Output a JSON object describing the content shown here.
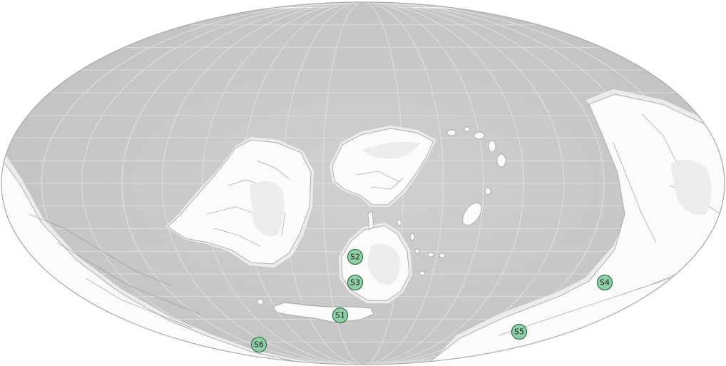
{
  "map": {
    "projection": "mollweide",
    "colors": {
      "ocean": "#c9c9c9",
      "land": "#fbfbfb",
      "grid": "#e2e2e2",
      "marker_fill": "#8fcfa6",
      "marker_stroke": "#2f6f4c"
    },
    "markers": [
      {
        "id": "S1",
        "label": "S1"
      },
      {
        "id": "S2",
        "label": "S2"
      },
      {
        "id": "S3",
        "label": "S3"
      },
      {
        "id": "S4",
        "label": "S4"
      },
      {
        "id": "S5",
        "label": "S5"
      },
      {
        "id": "S6",
        "label": "S6"
      }
    ]
  }
}
